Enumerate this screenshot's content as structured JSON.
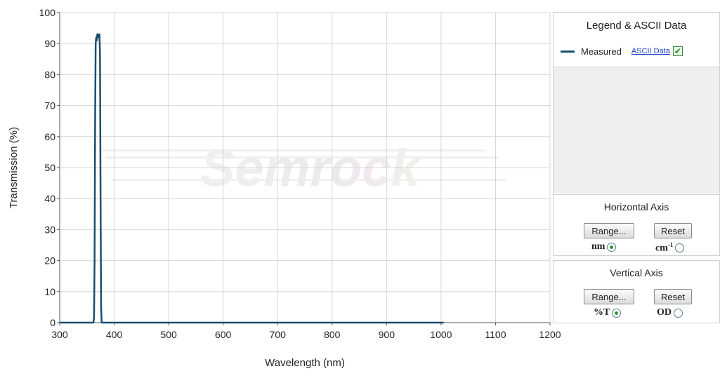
{
  "chart_data": {
    "type": "line",
    "xlabel": "Wavelength (nm)",
    "ylabel": "Transmission (%)",
    "xlim": [
      300,
      1200
    ],
    "ylim": [
      0,
      100
    ],
    "x_ticks": [
      "300",
      "400",
      "500",
      "600",
      "700",
      "800",
      "900",
      "1000",
      "1100",
      "1200"
    ],
    "y_ticks": [
      "0",
      "10",
      "20",
      "30",
      "40",
      "50",
      "60",
      "70",
      "80",
      "90",
      "100"
    ],
    "grid": true,
    "legend_position": "right panel",
    "series": [
      {
        "name": "Measured",
        "color": "#1b4f6e",
        "x": [
          300,
          362,
          363,
          364,
          365,
          366,
          367,
          368,
          369,
          370,
          371,
          372,
          373,
          374,
          375,
          376,
          377,
          1005
        ],
        "y": [
          0,
          0,
          2,
          20,
          65,
          90,
          92,
          91,
          93,
          92,
          93,
          92,
          93,
          86,
          40,
          5,
          0,
          0
        ]
      }
    ]
  },
  "watermark": "Semrock",
  "legend_panel": {
    "title": "Legend & ASCII Data",
    "series_label": "Measured",
    "ascii_link": "ASCII Data",
    "checkbox_mark": "✔"
  },
  "horizontal_axis_panel": {
    "title": "Horizontal Axis",
    "range_button": "Range...",
    "reset_button": "Reset",
    "unit_a": "nm",
    "unit_b": "cm",
    "unit_b_sup": "-1",
    "selected": "nm"
  },
  "vertical_axis_panel": {
    "title": "Vertical Axis",
    "range_button": "Range...",
    "reset_button": "Reset",
    "unit_a": "%T",
    "unit_b": "OD",
    "selected": "%T"
  }
}
